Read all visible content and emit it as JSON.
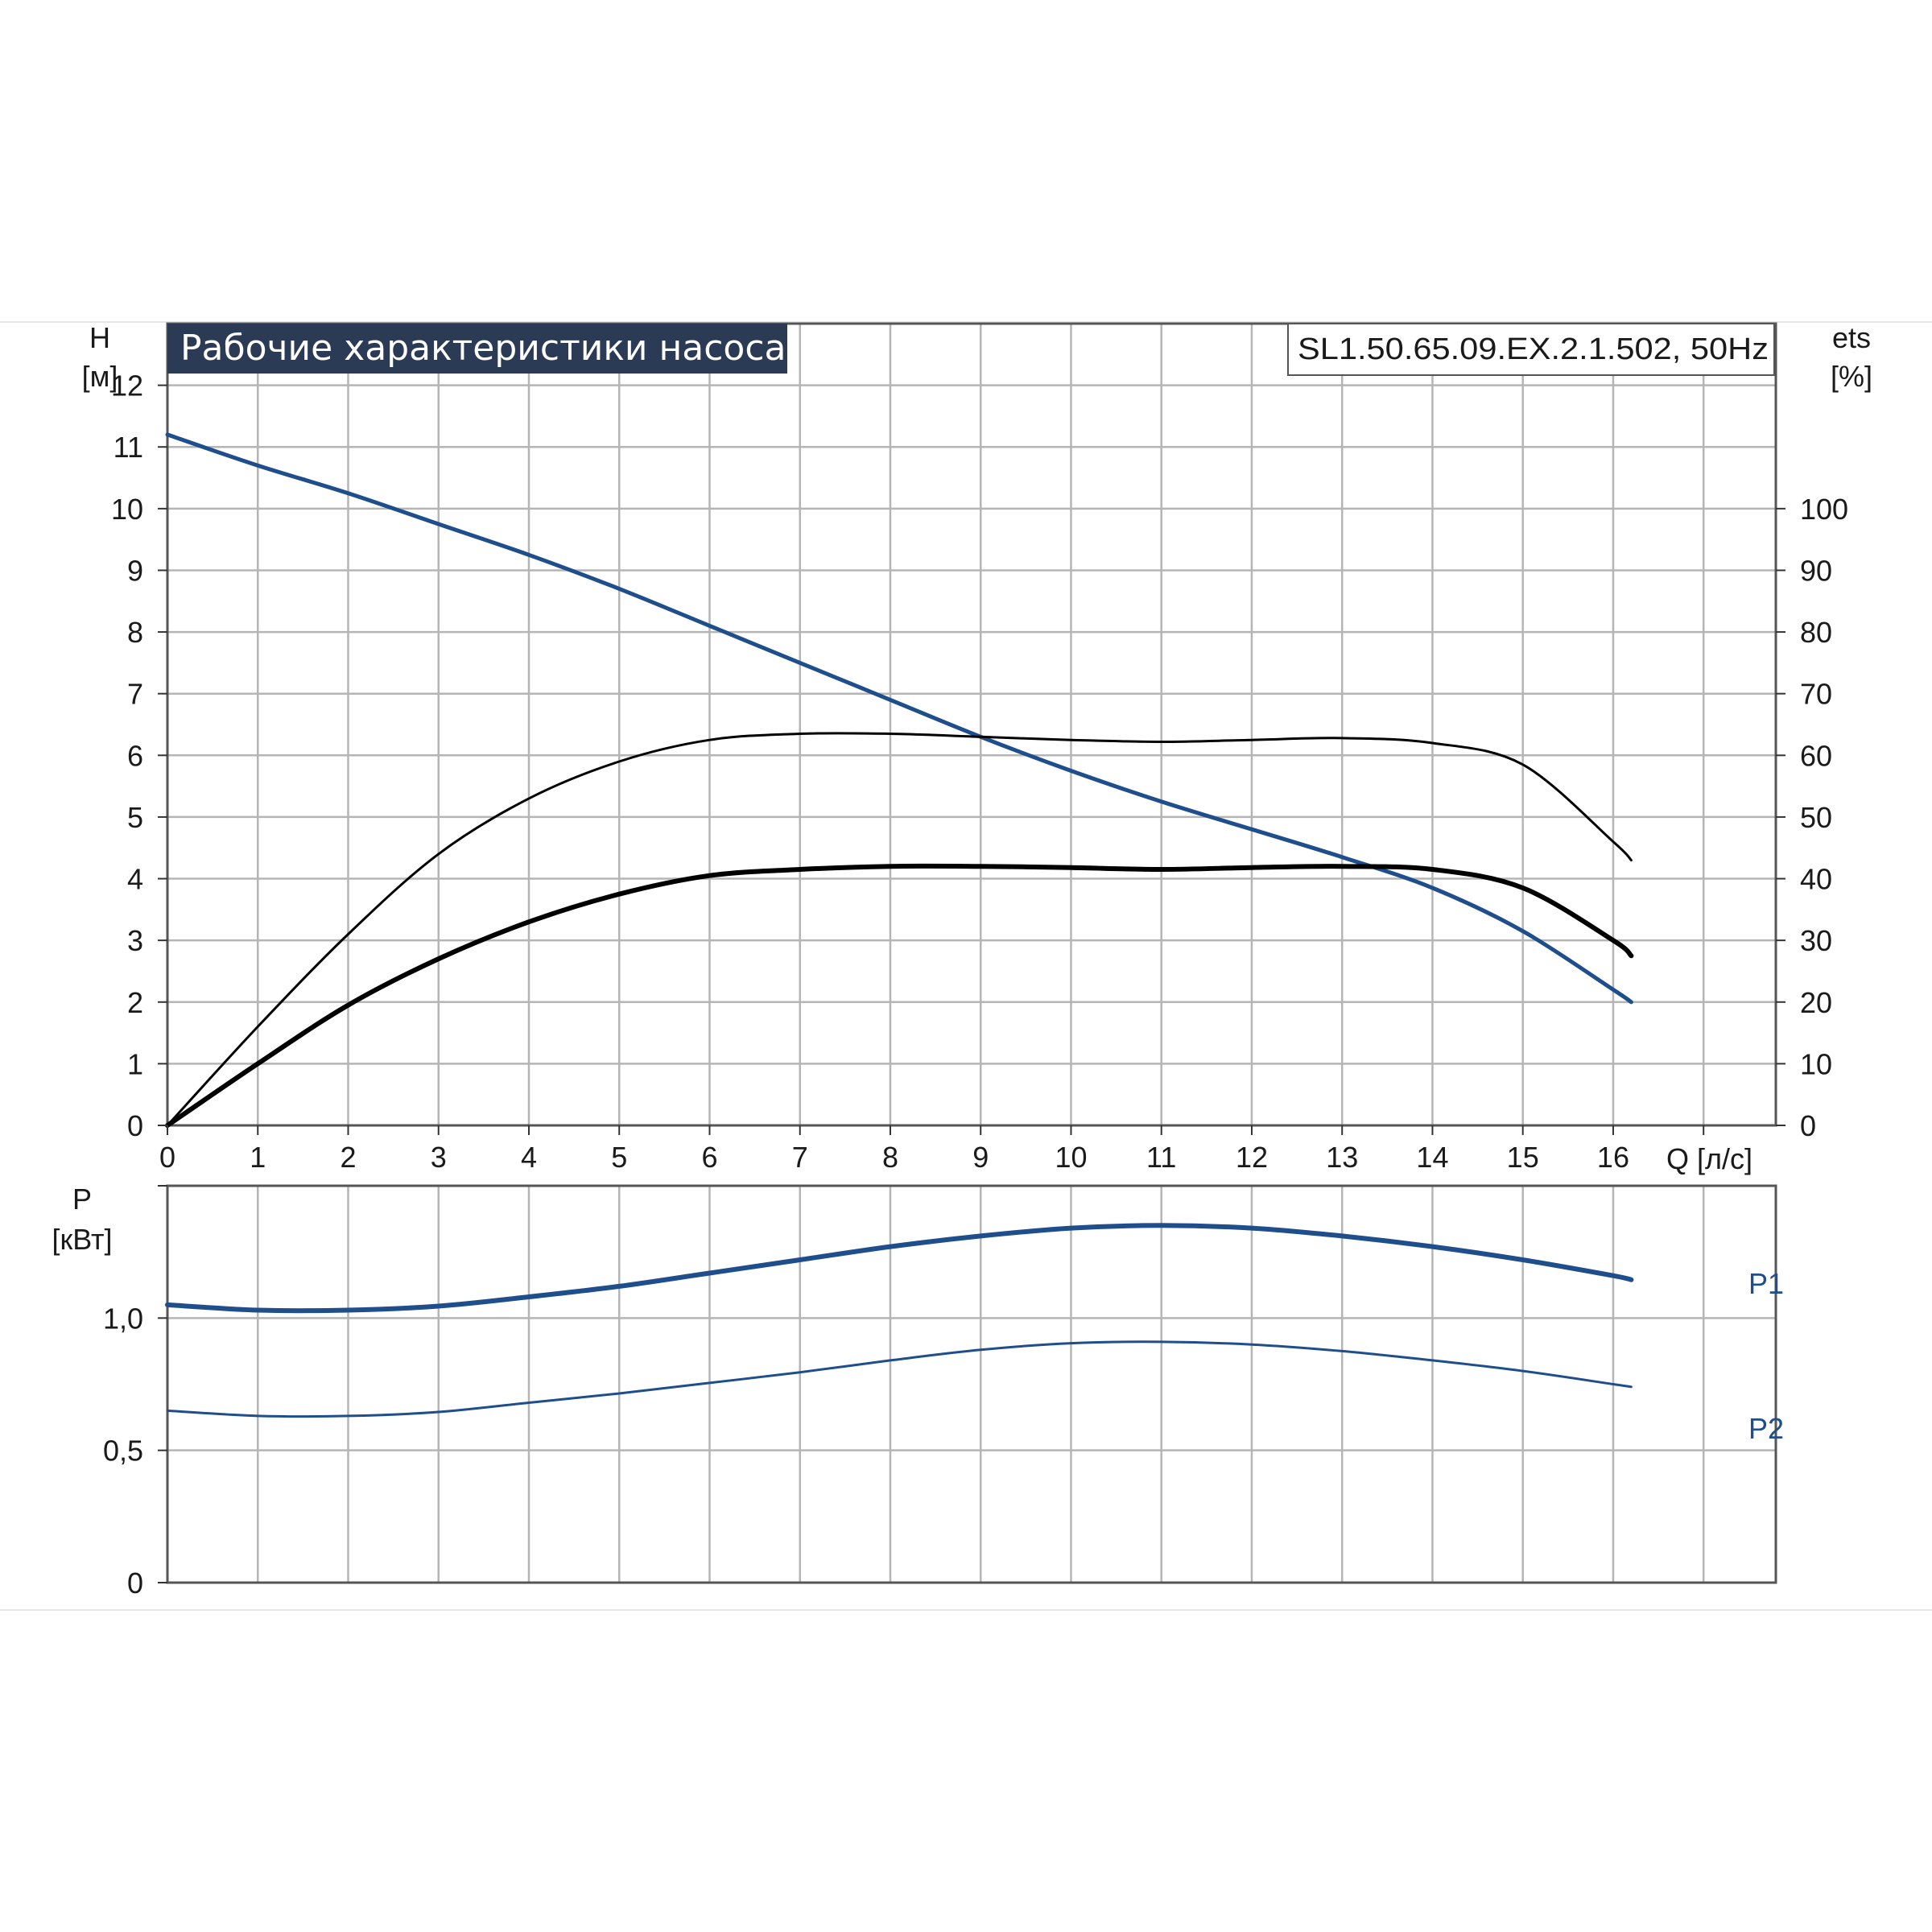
{
  "colors": {
    "blue": "#1f4e8c",
    "black": "#000000",
    "grid": "#b5b5b5",
    "title_bg": "#2b3a55",
    "frame": "#555555"
  },
  "chart_data": [
    {
      "type": "line",
      "title": "Рабочие характеристики насоса",
      "model": "SL1.50.65.09.EX.2.1.502, 50Hz",
      "xlabel": "Q [л/с]",
      "ylabel_left": [
        "H",
        "[м]"
      ],
      "ylabel_right": [
        "ets",
        "[%]"
      ],
      "xlim": [
        0,
        17.8
      ],
      "ylim_left": [
        0,
        13
      ],
      "ylim_right": [
        0,
        130
      ],
      "x_ticks": [
        "0",
        "1",
        "2",
        "3",
        "4",
        "5",
        "6",
        "7",
        "8",
        "9",
        "10",
        "11",
        "12",
        "13",
        "14",
        "15",
        "16"
      ],
      "y_ticks_left": [
        "0",
        "1",
        "2",
        "3",
        "4",
        "5",
        "6",
        "7",
        "8",
        "9",
        "10",
        "11",
        "12"
      ],
      "y_ticks_right": [
        "0",
        "10",
        "20",
        "30",
        "40",
        "50",
        "60",
        "70",
        "80",
        "90",
        "100"
      ],
      "grid": true,
      "series": [
        {
          "axis": "left",
          "color": "blue",
          "width": 5,
          "x": [
            0,
            1,
            2,
            3,
            4,
            5,
            6,
            7,
            8,
            9,
            10,
            11,
            12,
            13,
            14,
            15,
            16,
            16.2
          ],
          "y": [
            11.2,
            10.7,
            10.25,
            9.75,
            9.25,
            8.7,
            8.1,
            7.5,
            6.9,
            6.3,
            5.75,
            5.25,
            4.8,
            4.35,
            3.85,
            3.15,
            2.2,
            2.0
          ]
        },
        {
          "axis": "right",
          "color": "black",
          "width": 3,
          "x": [
            0,
            1,
            2,
            3,
            4,
            5,
            6,
            7,
            8,
            9,
            10,
            11,
            12,
            13,
            14,
            15,
            16,
            16.2
          ],
          "y": [
            0,
            16,
            31,
            44,
            53,
            59,
            62.5,
            63.5,
            63.5,
            63,
            62.5,
            62.2,
            62.5,
            62.8,
            62,
            58.5,
            46,
            43
          ]
        },
        {
          "axis": "right",
          "color": "black",
          "width": 6,
          "x": [
            0,
            1,
            2,
            3,
            4,
            5,
            6,
            7,
            8,
            9,
            10,
            11,
            12,
            13,
            14,
            15,
            16,
            16.2
          ],
          "y": [
            0,
            10,
            19.5,
            27,
            33,
            37.5,
            40.5,
            41.5,
            42,
            42,
            41.8,
            41.5,
            41.8,
            42,
            41.5,
            38.5,
            30,
            27.5
          ]
        }
      ]
    },
    {
      "type": "line",
      "ylabel": [
        "P",
        "[кВт]"
      ],
      "xlim": [
        0,
        17.8
      ],
      "ylim": [
        0,
        1.5
      ],
      "y_ticks": [
        "0",
        "0,5",
        "1,0"
      ],
      "grid": true,
      "series": [
        {
          "name": "P1",
          "color": "blue",
          "width": 6,
          "x": [
            0,
            1,
            2,
            3,
            4,
            5,
            6,
            7,
            8,
            9,
            10,
            11,
            12,
            13,
            14,
            15,
            16,
            16.2
          ],
          "y": [
            1.05,
            1.03,
            1.03,
            1.045,
            1.08,
            1.12,
            1.17,
            1.22,
            1.27,
            1.31,
            1.34,
            1.35,
            1.34,
            1.31,
            1.27,
            1.22,
            1.16,
            1.145
          ]
        },
        {
          "name": "P2",
          "color": "blue",
          "width": 3,
          "x": [
            0,
            1,
            2,
            3,
            4,
            5,
            6,
            7,
            8,
            9,
            10,
            11,
            12,
            13,
            14,
            15,
            16,
            16.2
          ],
          "y": [
            0.65,
            0.63,
            0.63,
            0.645,
            0.68,
            0.715,
            0.755,
            0.795,
            0.84,
            0.88,
            0.905,
            0.91,
            0.9,
            0.875,
            0.84,
            0.8,
            0.75,
            0.74
          ]
        }
      ]
    }
  ]
}
